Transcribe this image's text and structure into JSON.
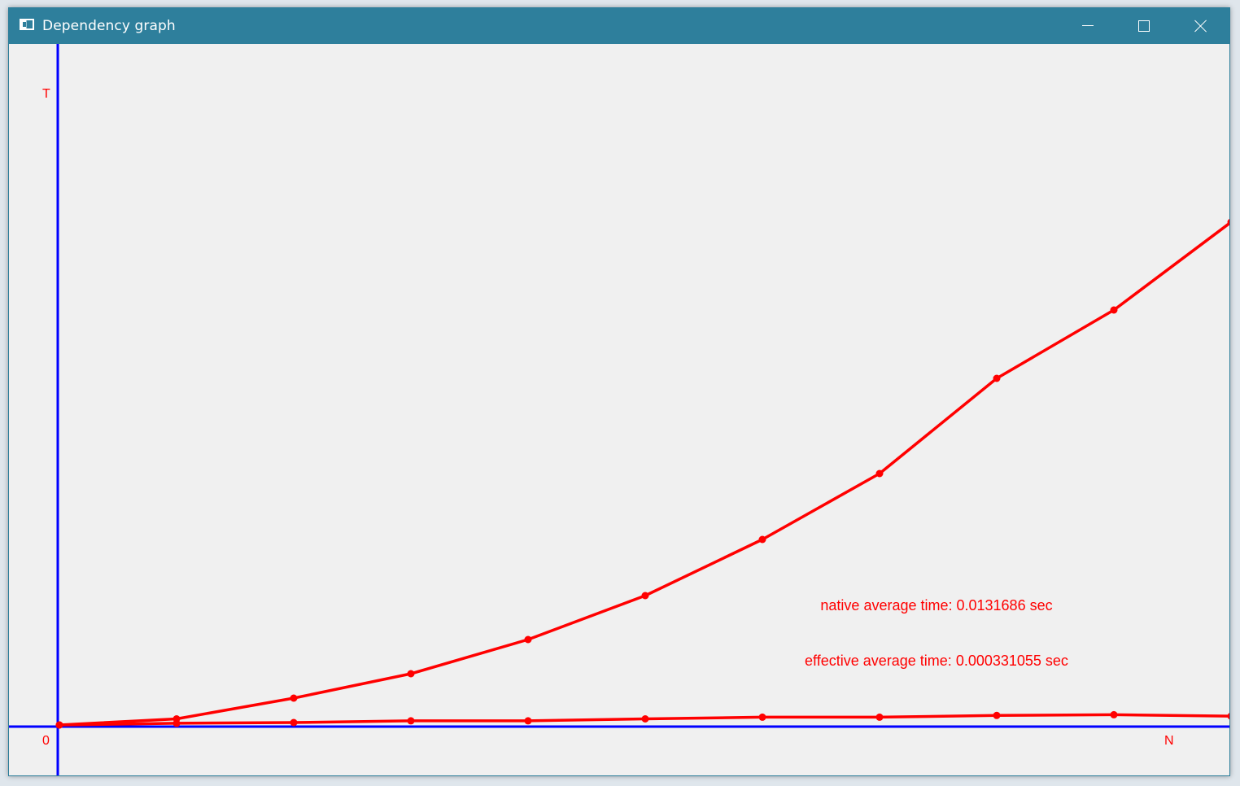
{
  "window": {
    "title": "Dependency graph",
    "icon": "app-window-icon",
    "buttons": [
      "minimize-icon",
      "maximize-icon",
      "close-icon"
    ]
  },
  "graph": {
    "axis_color": "#0000ff",
    "line_color": "#ff0000",
    "y_label": "T",
    "x_label": "N",
    "origin_label": "0",
    "native_text": "native average time: 0.0131686 sec",
    "effective_text": "effective average time: 0.000331055 sec"
  },
  "chart_data": {
    "type": "line",
    "x": [
      0,
      1,
      2,
      3,
      4,
      5,
      6,
      7,
      8,
      9,
      10
    ],
    "series": [
      {
        "values": [
          0.0,
          0.25,
          1.1,
          2.1,
          3.5,
          5.3,
          7.6,
          10.3,
          14.2,
          17.0,
          20.6
        ]
      },
      {
        "values": [
          0.0,
          0.07,
          0.1,
          0.17,
          0.17,
          0.25,
          0.32,
          0.32,
          0.39,
          0.42,
          0.36
        ]
      }
    ],
    "grid": false,
    "legend": "none"
  }
}
